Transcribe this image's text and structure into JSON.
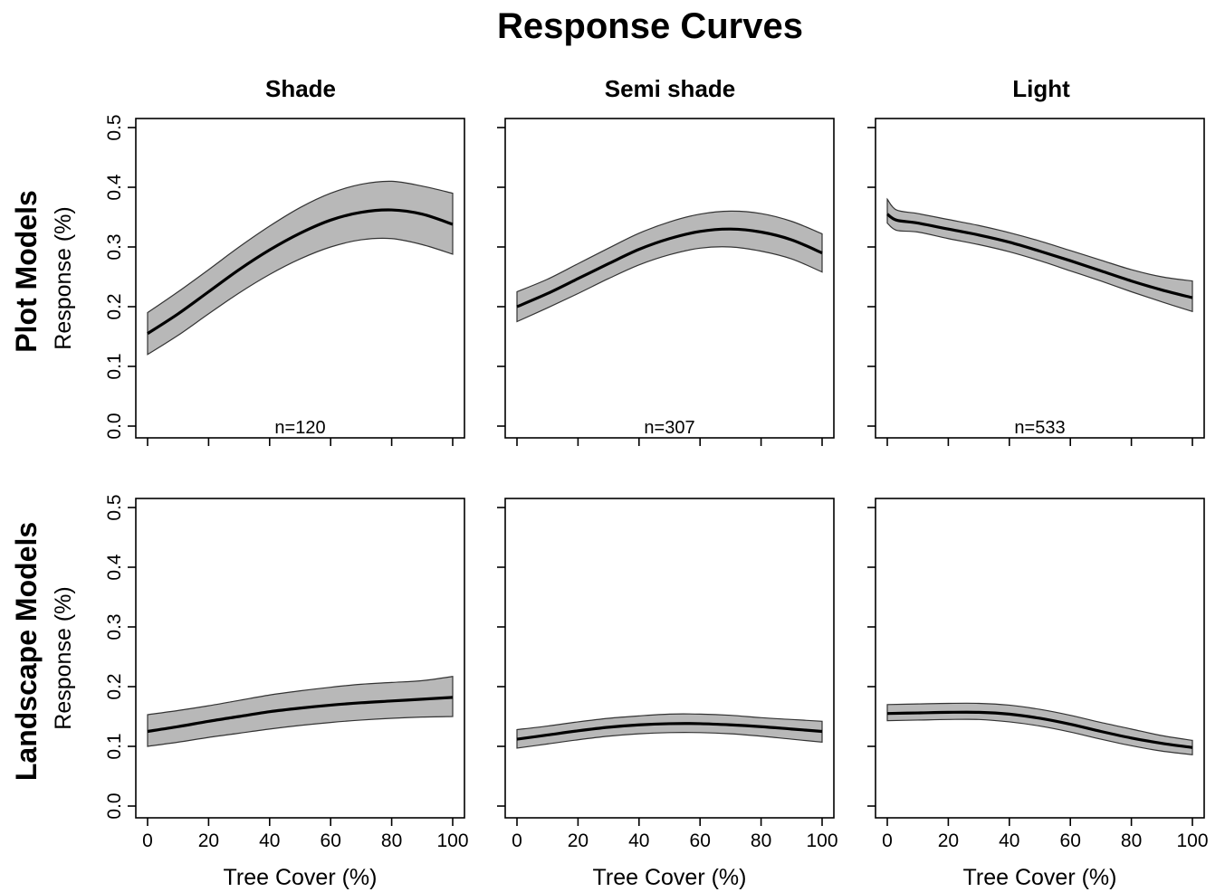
{
  "figure_title": "Response Curves",
  "column_titles": [
    "Shade",
    "Semi shade",
    "Light"
  ],
  "row_titles": [
    "Plot Models",
    "Landscape Models"
  ],
  "colors": {
    "band_fill": "#b8b8b8",
    "band_stroke": "#333333",
    "line": "#000000",
    "frame": "#000000"
  },
  "chart_data": [
    {
      "type": "line",
      "row": "Plot Models",
      "column": "Shade",
      "annotation": "n=120",
      "xlabel": "Tree Cover (%)",
      "ylabel": "Response (%)",
      "xlim": [
        0,
        100
      ],
      "ylim": [
        0,
        0.5
      ],
      "xticks": [
        "0",
        "20",
        "40",
        "60",
        "80",
        "100"
      ],
      "yticks": [
        "0.0",
        "0.1",
        "0.2",
        "0.3",
        "0.4",
        "0.5"
      ],
      "show_xtick_labels": false,
      "show_ytick_labels": true,
      "x": [
        0,
        10,
        20,
        30,
        40,
        50,
        60,
        70,
        80,
        90,
        100
      ],
      "mean": [
        0.155,
        0.188,
        0.225,
        0.262,
        0.295,
        0.323,
        0.345,
        0.358,
        0.362,
        0.355,
        0.338
      ],
      "lower": [
        0.12,
        0.152,
        0.188,
        0.223,
        0.254,
        0.28,
        0.3,
        0.312,
        0.314,
        0.304,
        0.288
      ],
      "upper": [
        0.19,
        0.225,
        0.262,
        0.3,
        0.335,
        0.366,
        0.39,
        0.405,
        0.41,
        0.402,
        0.39
      ]
    },
    {
      "type": "line",
      "row": "Plot Models",
      "column": "Semi shade",
      "annotation": "n=307",
      "xlabel": "Tree Cover (%)",
      "ylabel": "Response (%)",
      "xlim": [
        0,
        100
      ],
      "ylim": [
        0,
        0.5
      ],
      "xticks": [
        "0",
        "20",
        "40",
        "60",
        "80",
        "100"
      ],
      "yticks": [
        "0.0",
        "0.1",
        "0.2",
        "0.3",
        "0.4",
        "0.5"
      ],
      "show_xtick_labels": false,
      "show_ytick_labels": false,
      "x": [
        0,
        10,
        20,
        30,
        40,
        50,
        60,
        70,
        80,
        90,
        100
      ],
      "mean": [
        0.2,
        0.222,
        0.247,
        0.272,
        0.296,
        0.314,
        0.326,
        0.33,
        0.325,
        0.312,
        0.29
      ],
      "lower": [
        0.175,
        0.198,
        0.222,
        0.247,
        0.27,
        0.287,
        0.298,
        0.3,
        0.293,
        0.28,
        0.258
      ],
      "upper": [
        0.225,
        0.246,
        0.272,
        0.298,
        0.323,
        0.342,
        0.355,
        0.36,
        0.356,
        0.343,
        0.322
      ]
    },
    {
      "type": "line",
      "row": "Plot Models",
      "column": "Light",
      "annotation": "n=533",
      "xlabel": "Tree Cover (%)",
      "ylabel": "Response (%)",
      "xlim": [
        0,
        100
      ],
      "ylim": [
        0,
        0.5
      ],
      "xticks": [
        "0",
        "20",
        "40",
        "60",
        "80",
        "100"
      ],
      "yticks": [
        "0.0",
        "0.1",
        "0.2",
        "0.3",
        "0.4",
        "0.5"
      ],
      "show_xtick_labels": false,
      "show_ytick_labels": false,
      "x": [
        0,
        3,
        10,
        20,
        30,
        40,
        50,
        60,
        70,
        80,
        90,
        100
      ],
      "mean": [
        0.355,
        0.345,
        0.34,
        0.33,
        0.32,
        0.308,
        0.293,
        0.277,
        0.26,
        0.243,
        0.228,
        0.215
      ],
      "lower": [
        0.34,
        0.328,
        0.325,
        0.314,
        0.304,
        0.292,
        0.277,
        0.26,
        0.243,
        0.225,
        0.208,
        0.192
      ],
      "upper": [
        0.38,
        0.362,
        0.356,
        0.346,
        0.336,
        0.324,
        0.31,
        0.294,
        0.278,
        0.262,
        0.25,
        0.243
      ]
    },
    {
      "type": "line",
      "row": "Landscape Models",
      "column": "Shade",
      "xlabel": "Tree Cover (%)",
      "ylabel": "Response (%)",
      "xlim": [
        0,
        100
      ],
      "ylim": [
        0,
        0.5
      ],
      "xticks": [
        "0",
        "20",
        "40",
        "60",
        "80",
        "100"
      ],
      "yticks": [
        "0.0",
        "0.1",
        "0.2",
        "0.3",
        "0.4",
        "0.5"
      ],
      "show_xtick_labels": true,
      "show_ytick_labels": true,
      "x": [
        0,
        10,
        20,
        30,
        40,
        50,
        60,
        70,
        80,
        90,
        100
      ],
      "mean": [
        0.125,
        0.133,
        0.142,
        0.15,
        0.158,
        0.164,
        0.169,
        0.173,
        0.176,
        0.179,
        0.182
      ],
      "lower": [
        0.1,
        0.107,
        0.115,
        0.122,
        0.129,
        0.135,
        0.14,
        0.144,
        0.147,
        0.149,
        0.15
      ],
      "upper": [
        0.153,
        0.16,
        0.168,
        0.177,
        0.186,
        0.193,
        0.199,
        0.204,
        0.207,
        0.21,
        0.217
      ]
    },
    {
      "type": "line",
      "row": "Landscape Models",
      "column": "Semi shade",
      "xlabel": "Tree Cover (%)",
      "ylabel": "Response (%)",
      "xlim": [
        0,
        100
      ],
      "ylim": [
        0,
        0.5
      ],
      "xticks": [
        "0",
        "20",
        "40",
        "60",
        "80",
        "100"
      ],
      "yticks": [
        "0.0",
        "0.1",
        "0.2",
        "0.3",
        "0.4",
        "0.5"
      ],
      "show_xtick_labels": true,
      "show_ytick_labels": false,
      "x": [
        0,
        10,
        20,
        30,
        40,
        50,
        60,
        70,
        80,
        90,
        100
      ],
      "mean": [
        0.112,
        0.119,
        0.126,
        0.132,
        0.136,
        0.138,
        0.138,
        0.136,
        0.133,
        0.129,
        0.125
      ],
      "lower": [
        0.097,
        0.104,
        0.111,
        0.117,
        0.121,
        0.123,
        0.123,
        0.121,
        0.117,
        0.112,
        0.107
      ],
      "upper": [
        0.128,
        0.134,
        0.141,
        0.147,
        0.151,
        0.154,
        0.154,
        0.152,
        0.148,
        0.145,
        0.142
      ]
    },
    {
      "type": "line",
      "row": "Landscape Models",
      "column": "Light",
      "xlabel": "Tree Cover (%)",
      "ylabel": "Response (%)",
      "xlim": [
        0,
        100
      ],
      "ylim": [
        0,
        0.5
      ],
      "xticks": [
        "0",
        "20",
        "40",
        "60",
        "80",
        "100"
      ],
      "yticks": [
        "0.0",
        "0.1",
        "0.2",
        "0.3",
        "0.4",
        "0.5"
      ],
      "show_xtick_labels": true,
      "show_ytick_labels": false,
      "x": [
        0,
        10,
        20,
        30,
        40,
        50,
        60,
        70,
        80,
        90,
        100
      ],
      "mean": [
        0.155,
        0.156,
        0.157,
        0.157,
        0.154,
        0.147,
        0.137,
        0.125,
        0.114,
        0.105,
        0.098
      ],
      "lower": [
        0.143,
        0.144,
        0.145,
        0.145,
        0.141,
        0.134,
        0.124,
        0.112,
        0.101,
        0.092,
        0.086
      ],
      "upper": [
        0.17,
        0.171,
        0.172,
        0.172,
        0.169,
        0.162,
        0.152,
        0.14,
        0.129,
        0.118,
        0.11
      ]
    }
  ]
}
